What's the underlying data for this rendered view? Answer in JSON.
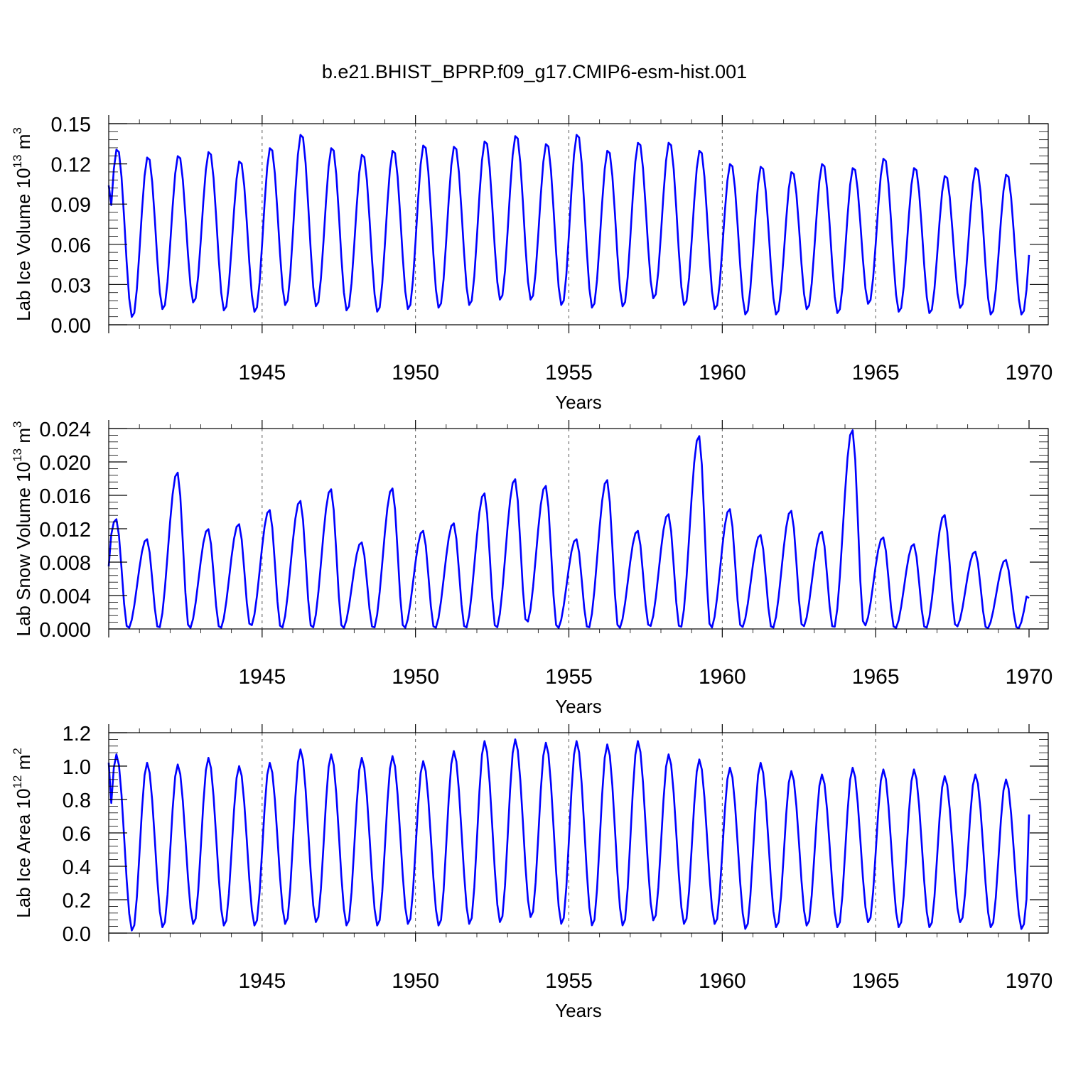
{
  "figure": {
    "title": "b.e21.BHIST_BPRP.f09_g17.CMIP6-esm-hist.001"
  },
  "chart_data": [
    {
      "type": "line",
      "xlabel": "Years",
      "ylabel": "Lab Ice Volume 10",
      "ylabel_exp": "13",
      "ylabel_unit": " m",
      "ylabel_unit_exp": "3",
      "xlim": [
        1940.0,
        1970.0
      ],
      "xticks": [
        "1945",
        "1950",
        "1955",
        "1960",
        "1965",
        "1970"
      ],
      "xtick_values": [
        1945,
        1950,
        1955,
        1960,
        1965,
        1970
      ],
      "ylim": [
        0.0,
        0.15
      ],
      "yticks": [
        "0.00",
        "0.03",
        "0.06",
        "0.09",
        "0.12",
        "0.15"
      ],
      "ytick_values": [
        0.0,
        0.03,
        0.06,
        0.09,
        0.12,
        0.15
      ],
      "vgrid": [
        1945,
        1950,
        1955,
        1960,
        1965
      ],
      "color": "#0000ff",
      "series": {
        "peak_month": 3.4,
        "min_month": 9.3,
        "start_value": 0.104,
        "end_value": 0.052,
        "max": [
          0.132,
          0.126,
          0.127,
          0.13,
          0.123,
          0.133,
          0.143,
          0.133,
          0.128,
          0.131,
          0.135,
          0.134,
          0.138,
          0.142,
          0.136,
          0.143,
          0.131,
          0.137,
          0.137,
          0.131,
          0.121,
          0.119,
          0.115,
          0.121,
          0.118,
          0.125,
          0.118,
          0.112,
          0.118,
          0.113
        ],
        "min": [
          0.005,
          0.011,
          0.016,
          0.01,
          0.009,
          0.014,
          0.013,
          0.01,
          0.009,
          0.011,
          0.012,
          0.014,
          0.018,
          0.018,
          0.014,
          0.012,
          0.013,
          0.019,
          0.014,
          0.011,
          0.007,
          0.007,
          0.011,
          0.008,
          0.015,
          0.009,
          0.008,
          0.012,
          0.007,
          0.007
        ]
      }
    },
    {
      "type": "line",
      "xlabel": "Years",
      "ylabel": "Lab Snow Volume 10",
      "ylabel_exp": "13",
      "ylabel_unit": " m",
      "ylabel_unit_exp": "3",
      "xlim": [
        1940.0,
        1970.0
      ],
      "xticks": [
        "1945",
        "1950",
        "1955",
        "1960",
        "1965",
        "1970"
      ],
      "xtick_values": [
        1945,
        1950,
        1955,
        1960,
        1965,
        1970
      ],
      "ylim": [
        0.0,
        0.024
      ],
      "yticks": [
        "0.000",
        "0.004",
        "0.008",
        "0.012",
        "0.016",
        "0.020",
        "0.024"
      ],
      "ytick_values": [
        0.0,
        0.004,
        0.008,
        0.012,
        0.016,
        0.02,
        0.024
      ],
      "vgrid": [
        1945,
        1950,
        1955,
        1960,
        1965
      ],
      "color": "#0000ff",
      "series": {
        "peak_month": 2.8,
        "min_month": 7.5,
        "start_value": 0.0075,
        "end_value": 0.0037,
        "max": [
          0.0132,
          0.0108,
          0.0188,
          0.012,
          0.0126,
          0.0143,
          0.0154,
          0.0168,
          0.0104,
          0.0169,
          0.0118,
          0.0127,
          0.0163,
          0.018,
          0.0172,
          0.0108,
          0.0179,
          0.0118,
          0.0138,
          0.0232,
          0.0144,
          0.0113,
          0.0142,
          0.0117,
          0.0239,
          0.011,
          0.0102,
          0.0137,
          0.0093,
          0.0083
        ],
        "min": [
          0.0,
          0.0,
          0.0,
          0.0,
          0.0003,
          0.0,
          0.0,
          0.0,
          0.0,
          0.0,
          0.0,
          0.0,
          0.0,
          0.0007,
          0.0,
          0.0,
          0.0,
          0.0002,
          0.0,
          0.0,
          0.0001,
          0.0,
          0.0002,
          0.0,
          0.0003,
          0.0,
          0.0,
          0.0002,
          0.0,
          0.0
        ]
      }
    },
    {
      "type": "line",
      "xlabel": "Years",
      "ylabel": "Lab Ice Area 10",
      "ylabel_exp": "12",
      "ylabel_unit": " m",
      "ylabel_unit_exp": "2",
      "xlim": [
        1940.0,
        1970.0
      ],
      "xticks": [
        "1945",
        "1950",
        "1955",
        "1960",
        "1965",
        "1970"
      ],
      "xtick_values": [
        1945,
        1950,
        1955,
        1960,
        1965,
        1970
      ],
      "ylim": [
        0.0,
        1.2
      ],
      "yticks": [
        "0.0",
        "0.2",
        "0.4",
        "0.6",
        "0.8",
        "1.0",
        "1.2"
      ],
      "ytick_values": [
        0.0,
        0.2,
        0.4,
        0.6,
        0.8,
        1.0,
        1.2
      ],
      "vgrid": [
        1945,
        1950,
        1955,
        1960,
        1965
      ],
      "color": "#0000ff",
      "series": {
        "peak_month": 3.0,
        "min_month": 9.3,
        "start_value": 1.02,
        "end_value": 0.71,
        "max": [
          1.07,
          1.02,
          1.01,
          1.05,
          1.0,
          1.02,
          1.1,
          1.07,
          1.05,
          1.06,
          1.03,
          1.09,
          1.15,
          1.16,
          1.14,
          1.15,
          1.13,
          1.15,
          1.07,
          1.04,
          0.99,
          1.02,
          0.97,
          0.95,
          0.99,
          0.98,
          0.98,
          0.94,
          0.95,
          0.92
        ],
        "min": [
          0.01,
          0.03,
          0.05,
          0.04,
          0.04,
          0.05,
          0.06,
          0.04,
          0.04,
          0.05,
          0.04,
          0.05,
          0.06,
          0.09,
          0.05,
          0.04,
          0.04,
          0.07,
          0.05,
          0.05,
          0.02,
          0.03,
          0.04,
          0.03,
          0.06,
          0.03,
          0.03,
          0.06,
          0.03,
          0.02
        ]
      }
    }
  ]
}
